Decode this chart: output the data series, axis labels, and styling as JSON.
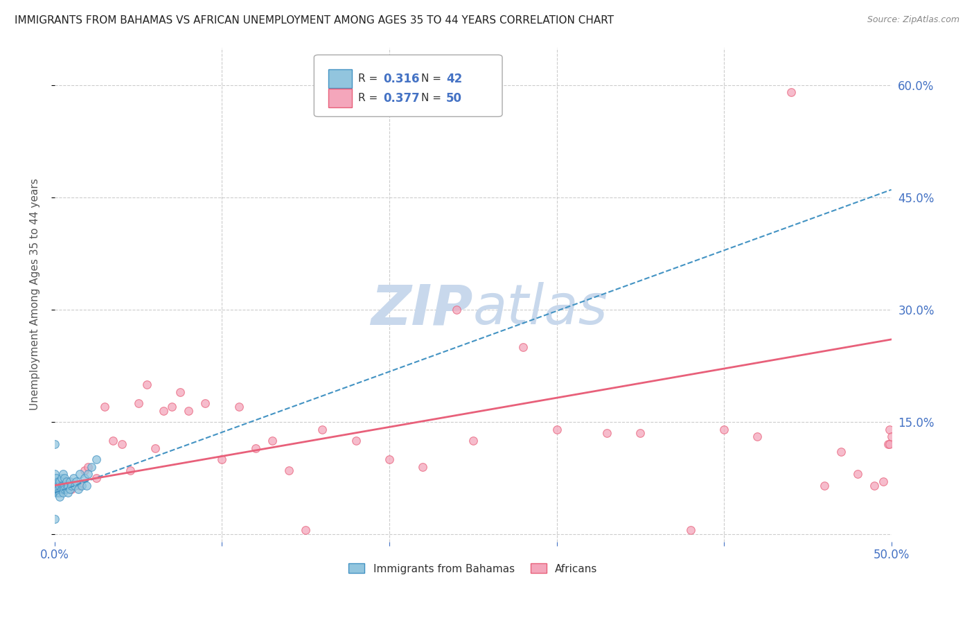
{
  "title": "IMMIGRANTS FROM BAHAMAS VS AFRICAN UNEMPLOYMENT AMONG AGES 35 TO 44 YEARS CORRELATION CHART",
  "source": "Source: ZipAtlas.com",
  "ylabel": "Unemployment Among Ages 35 to 44 years",
  "xlim": [
    0.0,
    0.5
  ],
  "ylim": [
    -0.01,
    0.65
  ],
  "yticks": [
    0.0,
    0.15,
    0.3,
    0.45,
    0.6
  ],
  "ytick_labels": [
    "",
    "15.0%",
    "30.0%",
    "45.0%",
    "60.0%"
  ],
  "xticks": [
    0.0,
    0.1,
    0.2,
    0.3,
    0.4,
    0.5
  ],
  "xtick_labels": [
    "0.0%",
    "",
    "",
    "",
    "",
    "50.0%"
  ],
  "blue_color": "#92c5de",
  "pink_color": "#f4a6bb",
  "blue_line_color": "#4393c3",
  "pink_line_color": "#e8607a",
  "axis_label_color": "#4472c4",
  "title_color": "#222222",
  "watermark_zip_color": "#c8d8ec",
  "watermark_atlas_color": "#c8d8ec",
  "bahamas_x": [
    0.0,
    0.0,
    0.0,
    0.001,
    0.001,
    0.001,
    0.002,
    0.002,
    0.002,
    0.002,
    0.003,
    0.003,
    0.003,
    0.003,
    0.004,
    0.004,
    0.004,
    0.005,
    0.005,
    0.005,
    0.005,
    0.006,
    0.006,
    0.006,
    0.007,
    0.007,
    0.008,
    0.008,
    0.009,
    0.009,
    0.01,
    0.011,
    0.012,
    0.013,
    0.014,
    0.015,
    0.016,
    0.018,
    0.019,
    0.02,
    0.022,
    0.025
  ],
  "bahamas_y": [
    0.02,
    0.08,
    0.12,
    0.065,
    0.075,
    0.055,
    0.065,
    0.07,
    0.06,
    0.055,
    0.065,
    0.07,
    0.055,
    0.05,
    0.065,
    0.06,
    0.075,
    0.065,
    0.06,
    0.055,
    0.08,
    0.065,
    0.06,
    0.075,
    0.07,
    0.06,
    0.065,
    0.055,
    0.07,
    0.06,
    0.065,
    0.075,
    0.065,
    0.07,
    0.06,
    0.08,
    0.065,
    0.075,
    0.065,
    0.08,
    0.09,
    0.1
  ],
  "bahamas_trend_x": [
    0.0,
    0.5
  ],
  "bahamas_trend_y": [
    0.055,
    0.46
  ],
  "africans_x": [
    0.001,
    0.003,
    0.005,
    0.008,
    0.01,
    0.015,
    0.018,
    0.02,
    0.025,
    0.03,
    0.035,
    0.04,
    0.045,
    0.05,
    0.055,
    0.06,
    0.065,
    0.07,
    0.075,
    0.08,
    0.09,
    0.1,
    0.11,
    0.12,
    0.13,
    0.14,
    0.15,
    0.16,
    0.18,
    0.2,
    0.22,
    0.24,
    0.25,
    0.28,
    0.3,
    0.33,
    0.35,
    0.38,
    0.4,
    0.42,
    0.44,
    0.46,
    0.47,
    0.48,
    0.49,
    0.495,
    0.498,
    0.499,
    0.499,
    0.5
  ],
  "africans_y": [
    0.06,
    0.055,
    0.065,
    0.07,
    0.06,
    0.065,
    0.085,
    0.09,
    0.075,
    0.17,
    0.125,
    0.12,
    0.085,
    0.175,
    0.2,
    0.115,
    0.165,
    0.17,
    0.19,
    0.165,
    0.175,
    0.1,
    0.17,
    0.115,
    0.125,
    0.085,
    0.005,
    0.14,
    0.125,
    0.1,
    0.09,
    0.3,
    0.125,
    0.25,
    0.14,
    0.135,
    0.135,
    0.005,
    0.14,
    0.13,
    0.59,
    0.065,
    0.11,
    0.08,
    0.065,
    0.07,
    0.12,
    0.14,
    0.12,
    0.13
  ],
  "africans_trend_x": [
    0.0,
    0.5
  ],
  "africans_trend_y": [
    0.065,
    0.26
  ]
}
